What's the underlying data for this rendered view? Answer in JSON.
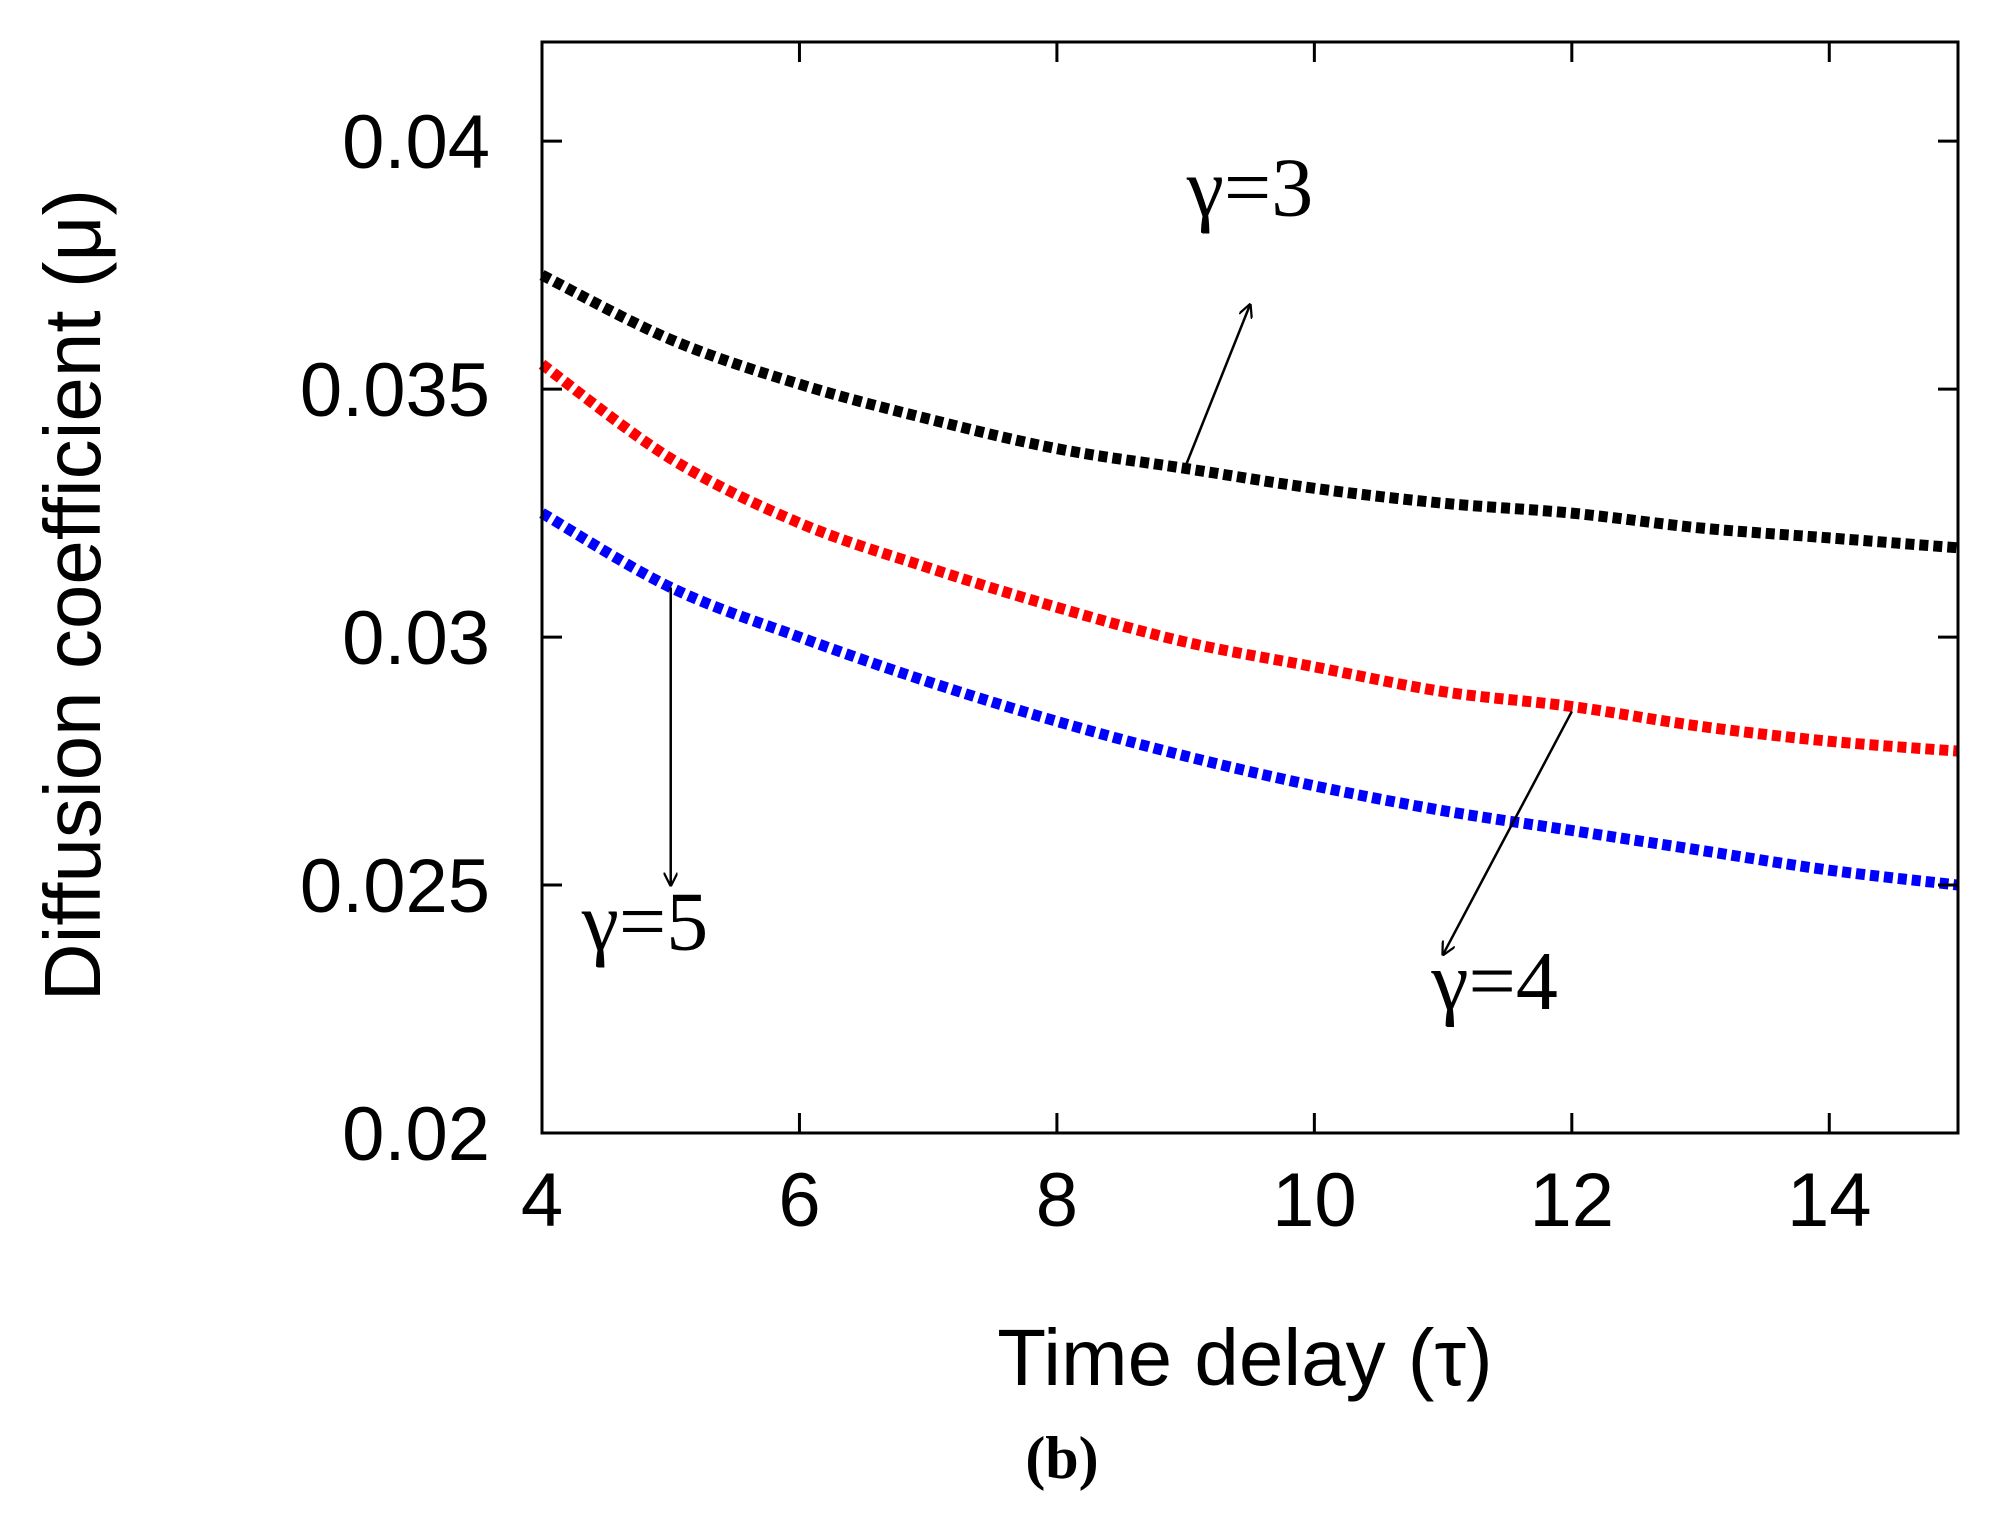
{
  "chart_data": {
    "type": "line",
    "panel_label": "(b)",
    "xlabel": "Time delay (τ)",
    "ylabel": "Diffusion coefficient (μ)",
    "xlim": [
      4,
      15
    ],
    "ylim": [
      0.02,
      0.042
    ],
    "xticks": [
      4,
      6,
      8,
      10,
      12,
      14
    ],
    "yticks": [
      0.02,
      0.025,
      0.03,
      0.035,
      0.04
    ],
    "xtick_labels": [
      "4",
      "6",
      "8",
      "10",
      "12",
      "14"
    ],
    "ytick_labels": [
      "0.02",
      "0.025",
      "0.03",
      "0.035",
      "0.04"
    ],
    "grid": false,
    "legend": "none",
    "line_style": "dotted",
    "x": [
      4,
      5,
      6,
      7,
      8,
      9,
      10,
      11,
      12,
      13,
      14,
      15
    ],
    "series": [
      {
        "color": "#000000",
        "values": [
          0.0373,
          0.036,
          0.0351,
          0.0344,
          0.0338,
          0.0334,
          0.033,
          0.0327,
          0.0325,
          0.0322,
          0.032,
          0.0318
        ]
      },
      {
        "color": "#ff0000",
        "values": [
          0.0355,
          0.0336,
          0.0323,
          0.0314,
          0.0306,
          0.0299,
          0.0294,
          0.0289,
          0.0286,
          0.0282,
          0.0279,
          0.0277
        ]
      },
      {
        "color": "#0000ff",
        "values": [
          0.0325,
          0.031,
          0.03,
          0.0291,
          0.0283,
          0.0276,
          0.027,
          0.0265,
          0.0261,
          0.0257,
          0.0253,
          0.025
        ]
      }
    ],
    "annotations": [
      {
        "text": "γ=3",
        "label_at": [
          9.5,
          0.0385
        ],
        "arrow_from": [
          9.0,
          0.03345
        ],
        "arrow_to": [
          9.5,
          0.0367
        ],
        "ha": "middle"
      },
      {
        "text": "γ=4",
        "label_at": [
          11.4,
          0.0225
        ],
        "arrow_from": [
          12.0,
          0.0285
        ],
        "arrow_to": [
          11.0,
          0.0236
        ],
        "ha": "middle"
      },
      {
        "text": "γ=5",
        "label_at": [
          4.8,
          0.0237
        ],
        "arrow_from": [
          5.0,
          0.031
        ],
        "arrow_to": [
          5.0,
          0.025
        ],
        "ha": "middle"
      }
    ]
  }
}
